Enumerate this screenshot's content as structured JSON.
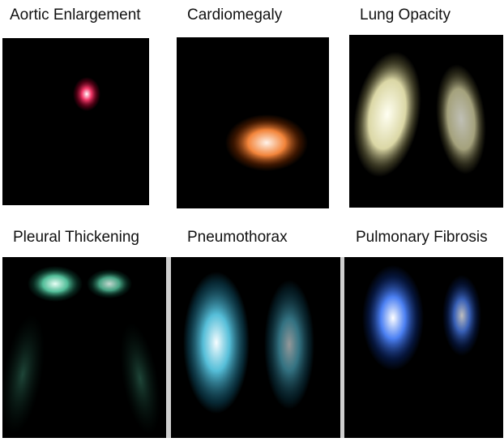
{
  "figure": {
    "panels": [
      {
        "id": "aortic",
        "label": "Aortic Enlargement",
        "colors": {
          "core": "#ffffff",
          "mid": "#ff3b6e",
          "edge": "#8a0022"
        }
      },
      {
        "id": "cardio",
        "label": "Cardiomegaly",
        "colors": {
          "core": "#fff3ea",
          "mid": "#ff8b3d",
          "edge": "#7a2c00"
        }
      },
      {
        "id": "opacity",
        "label": "Lung Opacity",
        "colors": {
          "core": "#fffff2",
          "mid": "#f3efb8",
          "edge": "#6d6940"
        }
      },
      {
        "id": "pleural",
        "label": "Pleural Thickening",
        "colors": {
          "core": "#e9fff6",
          "mid": "#56c7a0",
          "edge": "#0f4a38"
        }
      },
      {
        "id": "pneumo",
        "label": "Pneumothorax",
        "colors": {
          "core": "#f7fdff",
          "mid": "#5fd3f0",
          "edge": "#0e4f66"
        }
      },
      {
        "id": "fibrosis",
        "label": "Pulmonary Fibrosis",
        "colors": {
          "core": "#ffffff",
          "mid": "#4f86ff",
          "edge": "#0b2a77"
        }
      }
    ]
  }
}
